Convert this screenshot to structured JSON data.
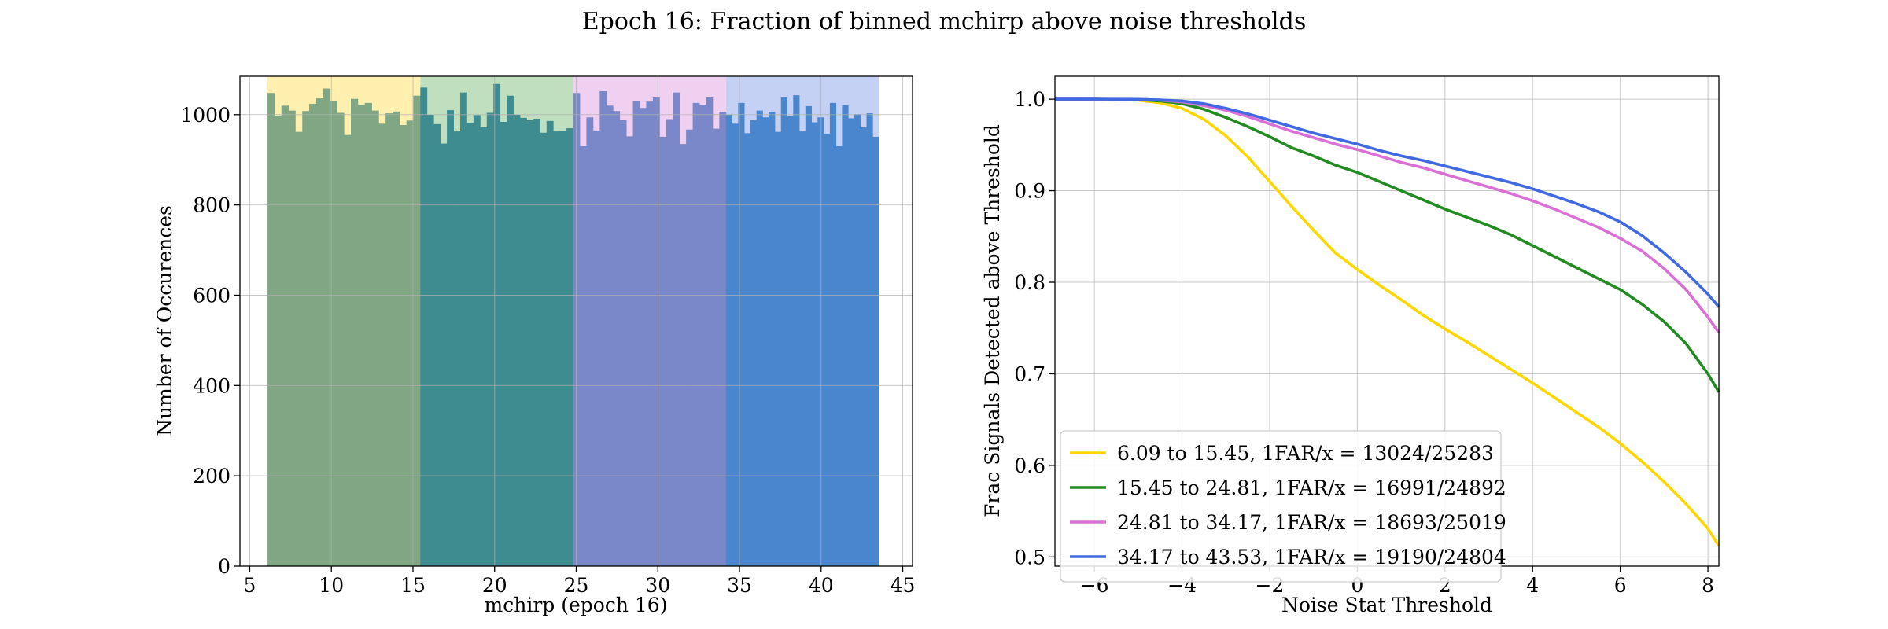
{
  "figure": {
    "title": "Epoch 16: Fraction of binned mchirp above noise thresholds"
  },
  "chart_data": [
    {
      "type": "bar",
      "xlabel": "mchirp (epoch 16)",
      "ylabel": "Number of Occurences",
      "xlim": [
        4.4,
        45.6
      ],
      "ylim": [
        0,
        1085
      ],
      "xticks": [
        5,
        10,
        15,
        20,
        25,
        30,
        35,
        40,
        45
      ],
      "yticks": [
        0,
        200,
        400,
        600,
        800,
        1000
      ],
      "grid": true,
      "bands": [
        {
          "from": 6.09,
          "to": 15.45,
          "color": "#FFF0B0"
        },
        {
          "from": 15.45,
          "to": 24.81,
          "color": "#BFDFBF"
        },
        {
          "from": 24.81,
          "to": 34.17,
          "color": "#F0D0F0"
        },
        {
          "from": 34.17,
          "to": 43.53,
          "color": "#C5D0F5"
        }
      ],
      "series": [
        {
          "range": [
            6.09,
            15.45
          ],
          "color": "#80A684",
          "values": [
            1048,
            998,
            1020,
            1009,
            962,
            1008,
            1024,
            1036,
            1058,
            1031,
            1004,
            955,
            1035,
            1022,
            1026,
            1009,
            980,
            1003,
            1007,
            977,
            987,
            1042
          ]
        },
        {
          "range": [
            15.45,
            24.81
          ],
          "color": "#3E8C90",
          "values": [
            1060,
            1000,
            979,
            936,
            1010,
            963,
            1049,
            982,
            999,
            972,
            1004,
            1068,
            984,
            1042,
            1000,
            993,
            988,
            991,
            960,
            986,
            963,
            964,
            970
          ]
        },
        {
          "range": [
            24.81,
            34.17
          ],
          "color": "#7A87C8",
          "values": [
            1048,
            930,
            994,
            965,
            1052,
            1020,
            1008,
            988,
            952,
            1031,
            1015,
            1029,
            1038,
            951,
            990,
            1049,
            935,
            967,
            1026,
            1022,
            1038,
            969,
            1006
          ]
        },
        {
          "range": [
            34.17,
            43.53
          ],
          "color": "#4A86CE",
          "values": [
            1000,
            980,
            1026,
            959,
            988,
            1009,
            994,
            1006,
            962,
            1038,
            997,
            1043,
            963,
            1019,
            983,
            994,
            958,
            1026,
            930,
            1021,
            992,
            1001,
            972,
            1003,
            951
          ]
        }
      ]
    },
    {
      "type": "line",
      "xlabel": "Noise Stat Threshold",
      "ylabel": "Frac Signals Detected above Threshold",
      "xlim": [
        -6.9,
        8.25
      ],
      "ylim": [
        0.49,
        1.025
      ],
      "xticks": [
        -6,
        -4,
        -2,
        0,
        2,
        4,
        6,
        8
      ],
      "yticks": [
        0.5,
        0.6,
        0.7,
        0.8,
        0.9,
        1.0
      ],
      "grid": true,
      "legend_position": "lower-left",
      "series": [
        {
          "name": "6.09 to 15.45, 1FAR/x = 13024/25283",
          "color": "#FFD700",
          "x": [
            -6.9,
            -6,
            -5,
            -4.5,
            -4,
            -3.5,
            -3,
            -2.5,
            -2,
            -1.5,
            -1,
            -0.5,
            0,
            0.5,
            1,
            1.5,
            2,
            2.5,
            3,
            3.5,
            4,
            4.5,
            5,
            5.5,
            6,
            6.5,
            7,
            7.5,
            8,
            8.25
          ],
          "y": [
            1.0,
            1.0,
            0.999,
            0.996,
            0.99,
            0.978,
            0.96,
            0.937,
            0.91,
            0.883,
            0.857,
            0.832,
            0.814,
            0.797,
            0.781,
            0.764,
            0.749,
            0.735,
            0.72,
            0.705,
            0.69,
            0.674,
            0.658,
            0.642,
            0.624,
            0.604,
            0.582,
            0.558,
            0.531,
            0.512
          ]
        },
        {
          "name": "15.45 to 24.81, 1FAR/x = 16991/24892",
          "color": "#228B22",
          "x": [
            -6.9,
            -6,
            -5,
            -4.5,
            -4,
            -3.5,
            -3,
            -2.5,
            -2,
            -1.5,
            -1,
            -0.5,
            0,
            0.5,
            1,
            1.5,
            2,
            2.5,
            3,
            3.5,
            4,
            4.5,
            5,
            5.5,
            6,
            6.5,
            7,
            7.5,
            8,
            8.25
          ],
          "y": [
            1.0,
            1.0,
            0.9995,
            0.998,
            0.995,
            0.989,
            0.98,
            0.97,
            0.959,
            0.947,
            0.938,
            0.928,
            0.92,
            0.91,
            0.9,
            0.89,
            0.88,
            0.871,
            0.862,
            0.852,
            0.84,
            0.828,
            0.816,
            0.804,
            0.792,
            0.776,
            0.757,
            0.733,
            0.7,
            0.68
          ]
        },
        {
          "name": "24.81 to 34.17, 1FAR/x = 18693/25019",
          "color": "#DA70D6",
          "x": [
            -6.9,
            -6,
            -5,
            -4.5,
            -4,
            -3.5,
            -3,
            -2.5,
            -2,
            -1.5,
            -1,
            -0.5,
            0,
            0.5,
            1,
            1.5,
            2,
            2.5,
            3,
            3.5,
            4,
            4.5,
            5,
            5.5,
            6,
            6.5,
            7,
            7.5,
            8,
            8.25
          ],
          "y": [
            1.0,
            1.0,
            0.9998,
            0.999,
            0.997,
            0.993,
            0.988,
            0.981,
            0.973,
            0.965,
            0.958,
            0.951,
            0.945,
            0.938,
            0.931,
            0.925,
            0.918,
            0.911,
            0.904,
            0.897,
            0.889,
            0.88,
            0.87,
            0.86,
            0.848,
            0.834,
            0.815,
            0.792,
            0.762,
            0.745
          ]
        },
        {
          "name": "34.17 to 43.53, 1FAR/x = 19190/24804",
          "color": "#4169E1",
          "x": [
            -6.9,
            -6,
            -5,
            -4.5,
            -4,
            -3.5,
            -3,
            -2.5,
            -2,
            -1.5,
            -1,
            -0.5,
            0,
            0.5,
            1,
            1.5,
            2,
            2.5,
            3,
            3.5,
            4,
            4.5,
            5,
            5.5,
            6,
            6.5,
            7,
            7.5,
            8,
            8.25
          ],
          "y": [
            1.0,
            1.0,
            0.9998,
            0.9992,
            0.998,
            0.995,
            0.99,
            0.984,
            0.977,
            0.97,
            0.963,
            0.957,
            0.951,
            0.944,
            0.938,
            0.933,
            0.927,
            0.921,
            0.915,
            0.909,
            0.902,
            0.894,
            0.886,
            0.877,
            0.866,
            0.851,
            0.832,
            0.811,
            0.787,
            0.773
          ]
        }
      ]
    }
  ]
}
